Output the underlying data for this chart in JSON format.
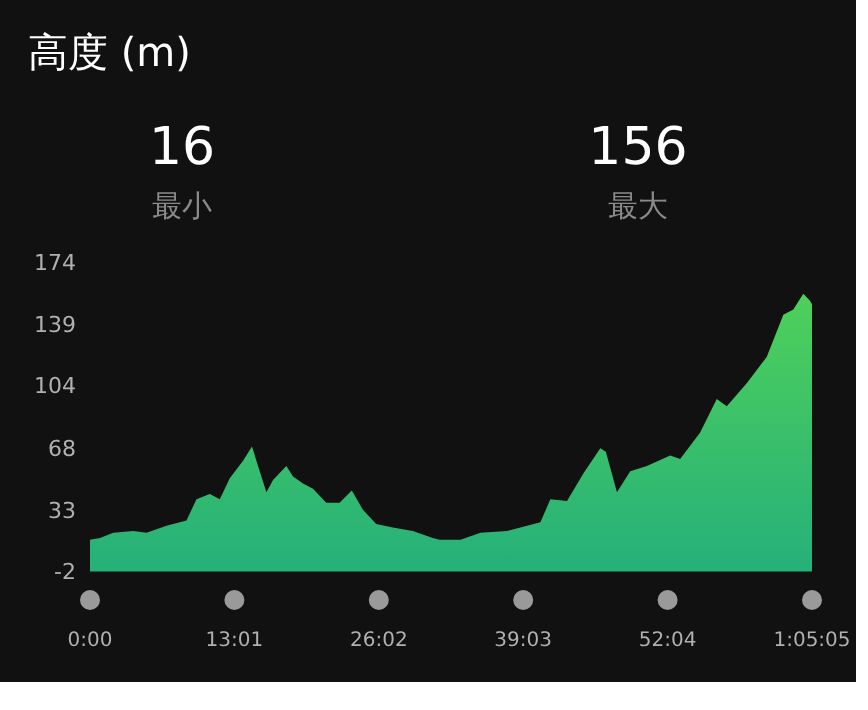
{
  "chart_data": {
    "type": "area",
    "title": "高度 (m)",
    "annotations": [
      "16",
      "最小",
      "156",
      "最大"
    ],
    "x": [
      0,
      0.9,
      2.1,
      3.9,
      5.1,
      6.9,
      8.1,
      8.7,
      9.6,
      10.8,
      11.7,
      12.6,
      13.8,
      14.6,
      15.0,
      15.9,
      16.5,
      17.7,
      18.3,
      19.2,
      20.1,
      21.3,
      22.5,
      23.6,
      24.6,
      25.8,
      27.3,
      29.1,
      30.9,
      31.5,
      33.4,
      35.2,
      37.6,
      39.4,
      40.6,
      41.5,
      43.0,
      44.5,
      46.0,
      46.5,
      47.5,
      48.7,
      50.2,
      52.3,
      53.2,
      55.0,
      56.5,
      57.4,
      59.2,
      61.0,
      62.5,
      63.4,
      64.3,
      64.9,
      65.083
    ],
    "series": [
      {
        "color": "#4fd05a",
        "values": [
          16,
          17,
          20,
          21,
          20,
          24,
          26,
          27,
          39,
          42,
          39,
          51,
          61,
          69,
          61,
          43,
          50,
          58,
          52,
          48,
          45,
          37,
          37,
          44,
          33,
          25,
          23,
          21,
          17,
          16,
          16,
          20,
          21,
          24,
          26,
          39,
          38,
          54,
          68,
          66,
          43,
          55,
          58,
          64,
          62,
          77,
          96,
          92,
          105,
          120,
          144,
          147,
          156,
          152,
          150
        ]
      }
    ],
    "xlim": [
      0,
      65.083
    ],
    "xticks": [
      {
        "value": 0,
        "label": "0:00"
      },
      {
        "value": 13.017,
        "label": "13:01"
      },
      {
        "value": 26.033,
        "label": "26:02"
      },
      {
        "value": 39.05,
        "label": "39:03"
      },
      {
        "value": 52.067,
        "label": "52:04"
      },
      {
        "value": 65.083,
        "label": "1:05:05"
      }
    ],
    "ylim": [
      -2,
      174
    ],
    "yticks": [
      174,
      139,
      104,
      68,
      33,
      -2
    ],
    "grid": false
  }
}
